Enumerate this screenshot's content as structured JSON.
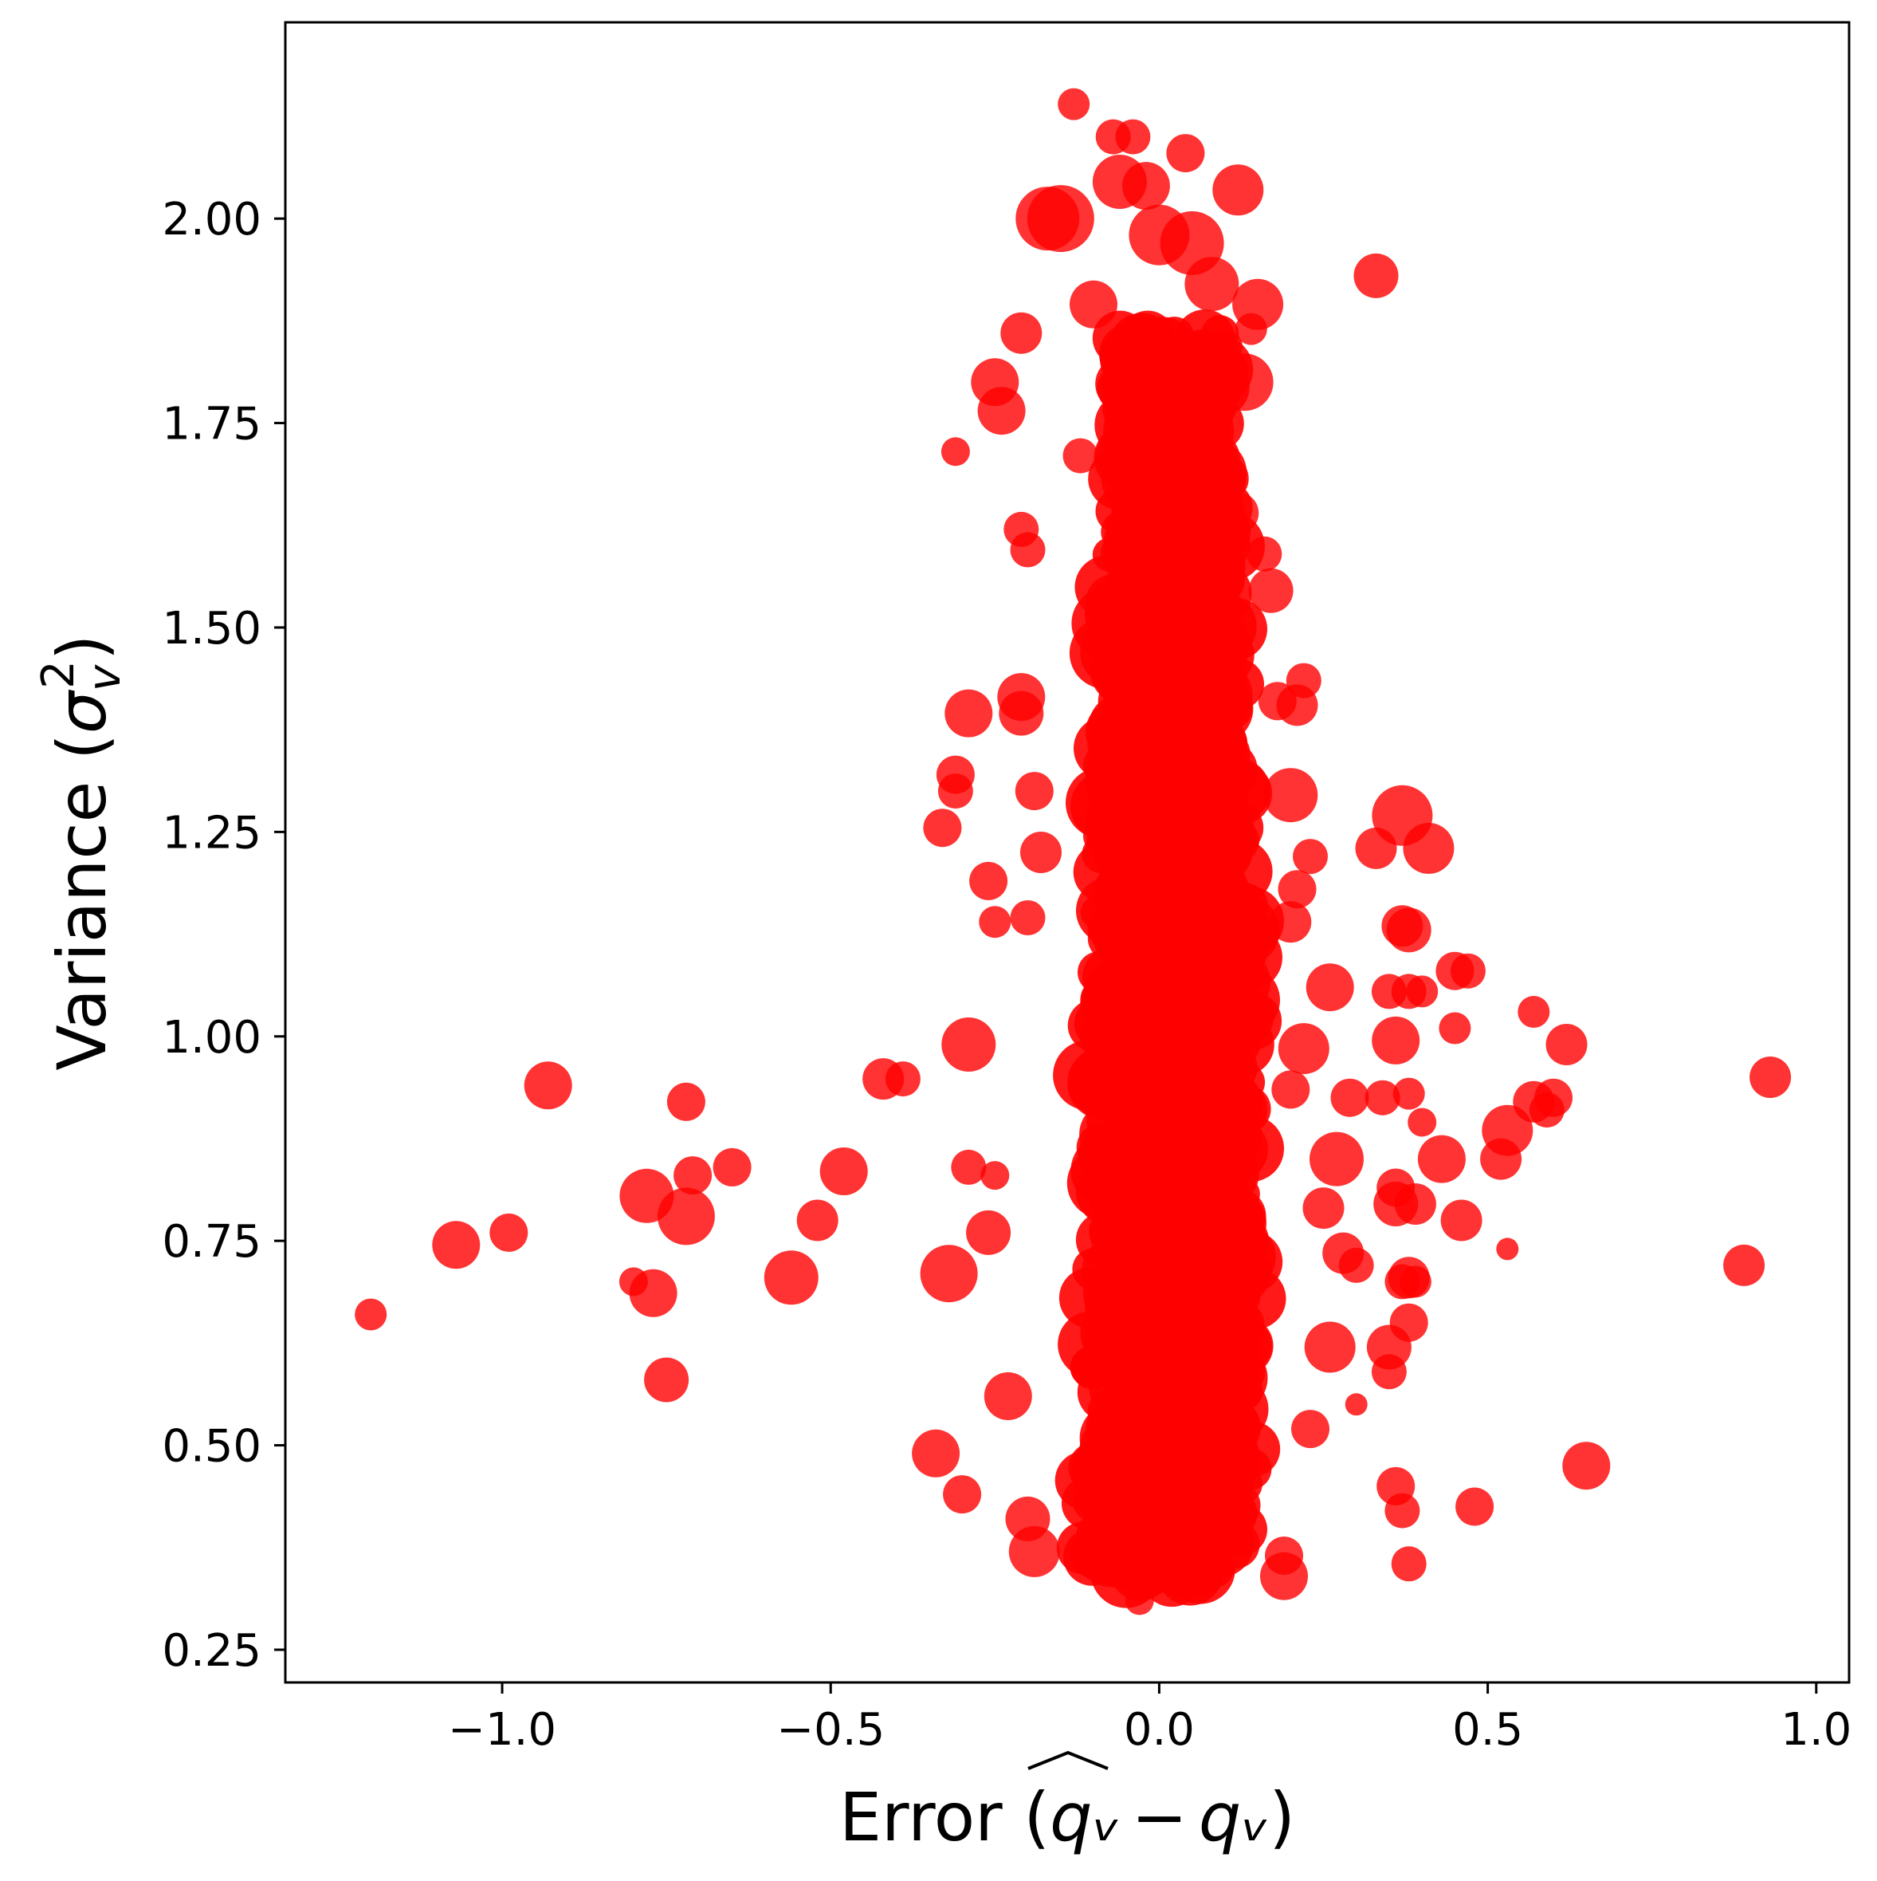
{
  "chart_data": {
    "type": "scatter",
    "title": "",
    "xlabel": "Error (q̂ᵥ − qᵥ)",
    "xlabel_parts": {
      "prefix": "Error (",
      "hat_term": "qᵥ",
      "minus": "−",
      "term": "qᵥ",
      "suffix": ")"
    },
    "ylabel": "Variance (σᵥ²)",
    "ylabel_parts": {
      "prefix": "Variance (",
      "sigma": "σ",
      "sub": "v",
      "sup": "2",
      "suffix": ")"
    },
    "xlim": [
      -1.33,
      1.05
    ],
    "ylim": [
      0.21,
      2.24
    ],
    "x_ticks": [
      -1.0,
      -0.5,
      0.0,
      0.5,
      1.0
    ],
    "x_tick_labels": [
      "−1.0",
      "−0.5",
      "0.0",
      "0.5",
      "1.0"
    ],
    "y_ticks": [
      0.25,
      0.5,
      0.75,
      1.0,
      1.25,
      1.5,
      1.75,
      2.0
    ],
    "y_tick_labels": [
      "0.25",
      "0.50",
      "0.75",
      "1.00",
      "1.25",
      "1.50",
      "1.75",
      "2.00"
    ],
    "grid": false,
    "legend": "none",
    "colors": {
      "marker": "#ff0000",
      "axes": "#000000",
      "background": "#ffffff"
    },
    "core_cluster": {
      "x_center": 0.02,
      "y_range": [
        0.34,
        1.86
      ],
      "half_widths": [
        [
          0.35,
          0.14
        ],
        [
          1.0,
          0.13
        ],
        [
          1.5,
          0.11
        ],
        [
          1.86,
          0.09
        ]
      ],
      "opacity": 0.9,
      "note_sizes": "marker size s in range 20-45"
    },
    "points": [
      [
        -1.2,
        0.66,
        20
      ],
      [
        -1.07,
        0.745,
        30
      ],
      [
        -0.99,
        0.76,
        24
      ],
      [
        -0.93,
        0.94,
        30
      ],
      [
        -0.8,
        0.7,
        18
      ],
      [
        -0.78,
        0.805,
        34
      ],
      [
        -0.77,
        0.686,
        30
      ],
      [
        -0.72,
        0.92,
        24
      ],
      [
        -0.72,
        0.78,
        36
      ],
      [
        -0.71,
        0.83,
        24
      ],
      [
        -0.75,
        0.58,
        28
      ],
      [
        -0.65,
        0.84,
        24
      ],
      [
        -0.56,
        0.705,
        34
      ],
      [
        -0.52,
        0.775,
        26
      ],
      [
        -0.48,
        0.835,
        30
      ],
      [
        -0.42,
        0.948,
        26
      ],
      [
        -0.39,
        0.948,
        22
      ],
      [
        -0.34,
        0.49,
        30
      ],
      [
        -0.33,
        1.255,
        24
      ],
      [
        -0.32,
        0.71,
        36
      ],
      [
        -0.31,
        1.715,
        18
      ],
      [
        -0.31,
        1.3,
        22
      ],
      [
        -0.31,
        1.32,
        24
      ],
      [
        -0.3,
        0.44,
        24
      ],
      [
        -0.29,
        0.84,
        22
      ],
      [
        -0.29,
        0.99,
        34
      ],
      [
        -0.29,
        1.395,
        30
      ],
      [
        -0.26,
        1.19,
        24
      ],
      [
        -0.25,
        1.14,
        20
      ],
      [
        -0.25,
        0.83,
        18
      ],
      [
        -0.24,
        1.765,
        30
      ],
      [
        -0.25,
        1.8,
        30
      ],
      [
        -0.26,
        0.76,
        28
      ],
      [
        -0.23,
        0.56,
        30
      ],
      [
        -0.21,
        1.86,
        26
      ],
      [
        -0.21,
        1.62,
        22
      ],
      [
        -0.21,
        1.395,
        28
      ],
      [
        -0.21,
        1.415,
        30
      ],
      [
        -0.2,
        1.595,
        22
      ],
      [
        -0.2,
        1.145,
        22
      ],
      [
        -0.2,
        0.41,
        28
      ],
      [
        -0.19,
        0.37,
        32
      ],
      [
        -0.19,
        1.3,
        24
      ],
      [
        -0.18,
        1.225,
        26
      ],
      [
        -0.17,
        2.0,
        40
      ],
      [
        -0.15,
        2.0,
        42
      ],
      [
        -0.13,
        2.14,
        20
      ],
      [
        -0.12,
        1.71,
        22
      ],
      [
        -0.1,
        1.895,
        30
      ],
      [
        -0.07,
        2.1,
        22
      ],
      [
        -0.06,
        2.045,
        34
      ],
      [
        -0.04,
        2.1,
        22
      ],
      [
        -0.02,
        2.04,
        30
      ],
      [
        0.0,
        1.98,
        38
      ],
      [
        0.04,
        2.08,
        24
      ],
      [
        0.05,
        1.97,
        40
      ],
      [
        0.08,
        1.92,
        34
      ],
      [
        0.12,
        2.035,
        32
      ],
      [
        0.13,
        1.8,
        36
      ],
      [
        0.15,
        1.895,
        32
      ],
      [
        0.14,
        1.865,
        20
      ],
      [
        0.12,
        1.64,
        26
      ],
      [
        0.16,
        1.59,
        22
      ],
      [
        0.17,
        1.545,
        28
      ],
      [
        0.18,
        1.41,
        24
      ],
      [
        0.21,
        1.405,
        26
      ],
      [
        0.22,
        1.435,
        22
      ],
      [
        0.2,
        1.295,
        34
      ],
      [
        0.23,
        1.22,
        22
      ],
      [
        0.21,
        1.18,
        24
      ],
      [
        0.2,
        1.14,
        26
      ],
      [
        0.26,
        1.06,
        30
      ],
      [
        0.22,
        0.985,
        32
      ],
      [
        0.2,
        0.935,
        24
      ],
      [
        0.27,
        0.85,
        34
      ],
      [
        0.29,
        0.925,
        24
      ],
      [
        0.25,
        0.79,
        26
      ],
      [
        0.28,
        0.735,
        26
      ],
      [
        0.3,
        0.72,
        22
      ],
      [
        0.3,
        0.55,
        14
      ],
      [
        0.23,
        0.52,
        24
      ],
      [
        0.26,
        0.62,
        32
      ],
      [
        0.33,
        1.93,
        28
      ],
      [
        0.33,
        1.23,
        26
      ],
      [
        0.37,
        1.27,
        38
      ],
      [
        0.41,
        1.23,
        32
      ],
      [
        0.37,
        1.135,
        26
      ],
      [
        0.38,
        1.13,
        28
      ],
      [
        0.35,
        1.055,
        22
      ],
      [
        0.38,
        1.055,
        22
      ],
      [
        0.4,
        1.055,
        20
      ],
      [
        0.36,
        0.995,
        30
      ],
      [
        0.34,
        0.925,
        22
      ],
      [
        0.38,
        0.93,
        20
      ],
      [
        0.4,
        0.895,
        18
      ],
      [
        0.36,
        0.815,
        24
      ],
      [
        0.36,
        0.795,
        28
      ],
      [
        0.39,
        0.795,
        26
      ],
      [
        0.38,
        0.705,
        26
      ],
      [
        0.37,
        0.7,
        22
      ],
      [
        0.39,
        0.7,
        20
      ],
      [
        0.38,
        0.65,
        24
      ],
      [
        0.35,
        0.62,
        28
      ],
      [
        0.35,
        0.59,
        22
      ],
      [
        0.36,
        0.45,
        24
      ],
      [
        0.37,
        0.42,
        22
      ],
      [
        0.38,
        0.355,
        22
      ],
      [
        0.43,
        0.85,
        30
      ],
      [
        0.45,
        1.01,
        20
      ],
      [
        0.45,
        1.08,
        24
      ],
      [
        0.47,
        1.08,
        22
      ],
      [
        0.46,
        0.775,
        26
      ],
      [
        0.48,
        0.425,
        24
      ],
      [
        0.52,
        0.85,
        26
      ],
      [
        0.53,
        0.885,
        32
      ],
      [
        0.53,
        0.74,
        14
      ],
      [
        0.57,
        1.03,
        20
      ],
      [
        0.57,
        0.92,
        26
      ],
      [
        0.6,
        0.925,
        24
      ],
      [
        0.59,
        0.91,
        22
      ],
      [
        0.62,
        0.99,
        26
      ],
      [
        0.65,
        0.475,
        30
      ],
      [
        0.89,
        0.72,
        26
      ],
      [
        0.93,
        0.95,
        26
      ],
      [
        0.19,
        0.34,
        30
      ],
      [
        0.19,
        0.365,
        24
      ],
      [
        -0.03,
        0.31,
        18
      ],
      [
        0.04,
        0.335,
        22
      ]
    ]
  }
}
